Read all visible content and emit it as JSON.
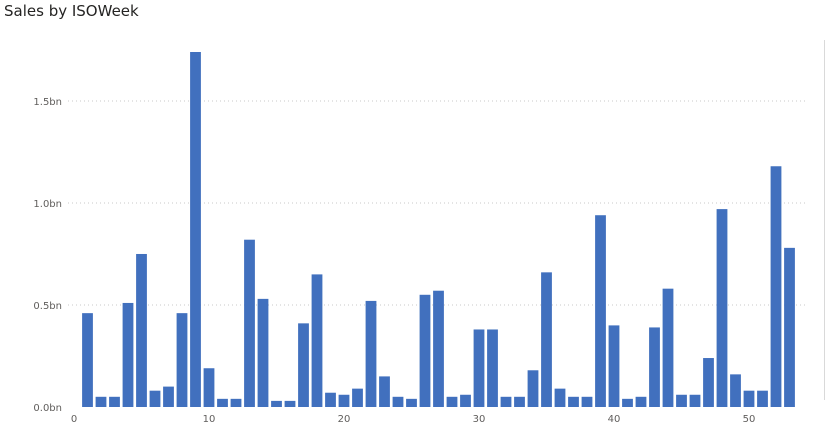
{
  "chart_data": {
    "type": "bar",
    "title": "Sales by ISOWeek",
    "xlabel": "",
    "ylabel": "",
    "color": "#4170BE",
    "grid": true,
    "xlim": [
      0,
      54
    ],
    "ylim": [
      0,
      1.8
    ],
    "yticks": [
      {
        "value": 0.0,
        "label": "0.0bn"
      },
      {
        "value": 0.5,
        "label": "0.5bn"
      },
      {
        "value": 1.0,
        "label": "1.0bn"
      },
      {
        "value": 1.5,
        "label": "1.5bn"
      }
    ],
    "xticks": [
      {
        "value": 0,
        "label": "0"
      },
      {
        "value": 10,
        "label": "10"
      },
      {
        "value": 20,
        "label": "20"
      },
      {
        "value": 30,
        "label": "30"
      },
      {
        "value": 40,
        "label": "40"
      },
      {
        "value": 50,
        "label": "50"
      }
    ],
    "x": [
      1,
      2,
      3,
      4,
      5,
      6,
      7,
      8,
      9,
      10,
      11,
      12,
      13,
      14,
      15,
      16,
      17,
      18,
      19,
      20,
      21,
      22,
      23,
      24,
      25,
      26,
      27,
      28,
      29,
      30,
      31,
      32,
      33,
      34,
      35,
      36,
      37,
      38,
      39,
      40,
      41,
      42,
      43,
      44,
      45,
      46,
      47,
      48,
      49,
      50,
      51,
      52,
      53
    ],
    "values": [
      0.46,
      0.05,
      0.05,
      0.51,
      0.75,
      0.08,
      0.1,
      0.46,
      1.74,
      0.19,
      0.04,
      0.04,
      0.82,
      0.53,
      0.03,
      0.03,
      0.41,
      0.65,
      0.07,
      0.06,
      0.09,
      0.52,
      0.15,
      0.05,
      0.04,
      0.55,
      0.57,
      0.05,
      0.06,
      0.38,
      0.38,
      0.05,
      0.05,
      0.18,
      0.66,
      0.09,
      0.05,
      0.05,
      0.94,
      0.4,
      0.04,
      0.05,
      0.39,
      0.58,
      0.06,
      0.06,
      0.24,
      0.97,
      0.16,
      0.08,
      0.08,
      1.18,
      0.78
    ]
  }
}
